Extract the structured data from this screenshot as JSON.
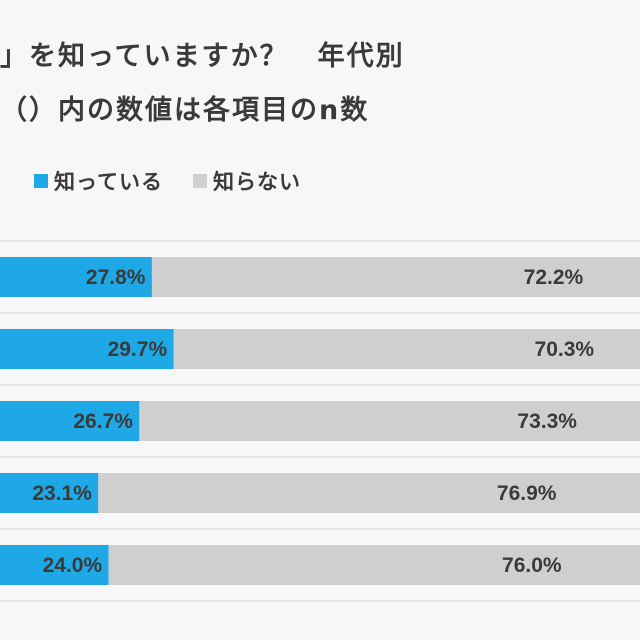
{
  "header": {
    "title_line1": "」を知っていますか？　年代別",
    "title_line2": "（）内の数値は各項目のn数"
  },
  "colors": {
    "known": "#1fa8e6",
    "unknown": "#cfcfcf",
    "label_text": "#3a3a3a"
  },
  "chart_data": {
    "type": "bar",
    "orientation": "horizontal",
    "stacked": true,
    "percent_stacked": true,
    "categories": [
      "",
      "",
      "",
      "",
      ""
    ],
    "series": [
      {
        "name": "知っている",
        "values": [
          27.8,
          29.7,
          26.7,
          23.1,
          24.0
        ]
      },
      {
        "name": "知らない",
        "values": [
          72.2,
          70.3,
          73.3,
          76.9,
          76.0
        ]
      }
    ],
    "data_labels": [
      [
        "27.8%",
        "29.7%",
        "26.7%",
        "23.1%",
        "24.0%"
      ],
      [
        "72.2%",
        "70.3%",
        "73.3%",
        "76.9%",
        "76.0%"
      ]
    ],
    "legend": {
      "position": "top-left",
      "labels": [
        "知っている",
        "知らない"
      ]
    },
    "grid": false
  }
}
